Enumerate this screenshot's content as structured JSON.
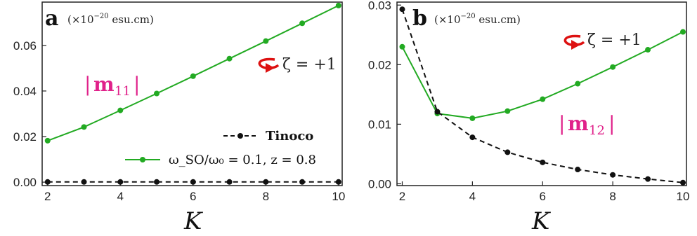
{
  "chart_data": [
    {
      "type": "line",
      "panel_label": "a",
      "units": "(×10⁻²⁰ esu.cm)",
      "units_prefix": "(×10",
      "units_exp": "−20",
      "units_suffix": " esu.cm)",
      "xlabel": "K",
      "curve_label": "|m11|",
      "curve_label_main": "m",
      "curve_label_sub": "11",
      "rotation_label": "ζ = +1",
      "x": [
        2,
        3,
        4,
        5,
        6,
        7,
        8,
        9,
        10
      ],
      "xlim": [
        1.85,
        10.1
      ],
      "ylim": [
        -0.0015,
        0.079
      ],
      "xticks": [
        "2",
        "4",
        "6",
        "8",
        "10"
      ],
      "yticks": [
        "0.00",
        "0.02",
        "0.04",
        "0.06"
      ],
      "series": [
        {
          "name": "ω_SO/ω0 = 0.1, z = 0.8",
          "style": "solid",
          "color": "#22aa22",
          "values": [
            0.0182,
            0.0242,
            0.0315,
            0.0389,
            0.0465,
            0.0542,
            0.0619,
            0.0697,
            0.0775
          ]
        },
        {
          "name": "Tinoco",
          "style": "dashed",
          "color": "#111111",
          "values": [
            0.0001,
            0.0001,
            0.0001,
            0.0001,
            0.0001,
            0.0001,
            0.0001,
            0.0001,
            0.0001
          ]
        }
      ],
      "legend": [
        {
          "label": "Tinoco",
          "style": "dashed",
          "color": "#111111"
        },
        {
          "label": "ω_SO/ω₀ = 0.1, z = 0.8",
          "style": "solid",
          "color": "#22aa22"
        }
      ],
      "legend_placement": "bottom-right"
    },
    {
      "type": "line",
      "panel_label": "b",
      "units": "(×10⁻²⁰ esu.cm)",
      "units_prefix": "(×10",
      "units_exp": "−20",
      "units_suffix": " esu.cm)",
      "xlabel": "K",
      "curve_label": "|m12|",
      "curve_label_main": "m",
      "curve_label_sub": "12",
      "rotation_label": "ζ = +1",
      "x": [
        2,
        3,
        4,
        5,
        6,
        7,
        8,
        9,
        10
      ],
      "xlim": [
        1.85,
        10.1
      ],
      "ylim": [
        -0.0003,
        0.0305
      ],
      "xticks": [
        "2",
        "4",
        "6",
        "8",
        "10"
      ],
      "yticks": [
        "0.00",
        "0.01",
        "0.02",
        "0.03"
      ],
      "series": [
        {
          "name": "ω_SO/ω0 = 0.1, z = 0.8",
          "style": "solid",
          "color": "#22aa22",
          "values": [
            0.023,
            0.0118,
            0.011,
            0.0122,
            0.0142,
            0.0168,
            0.0196,
            0.0225,
            0.0255
          ]
        },
        {
          "name": "Tinoco",
          "style": "dashed",
          "color": "#111111",
          "values": [
            0.0293,
            0.0121,
            0.0078,
            0.0053,
            0.0036,
            0.0024,
            0.0015,
            0.0008,
            0.0002
          ]
        }
      ]
    }
  ],
  "colors": {
    "green": "#22aa22",
    "black": "#111111",
    "magenta": "#e0218a",
    "arrow_red": "#dd1111"
  }
}
